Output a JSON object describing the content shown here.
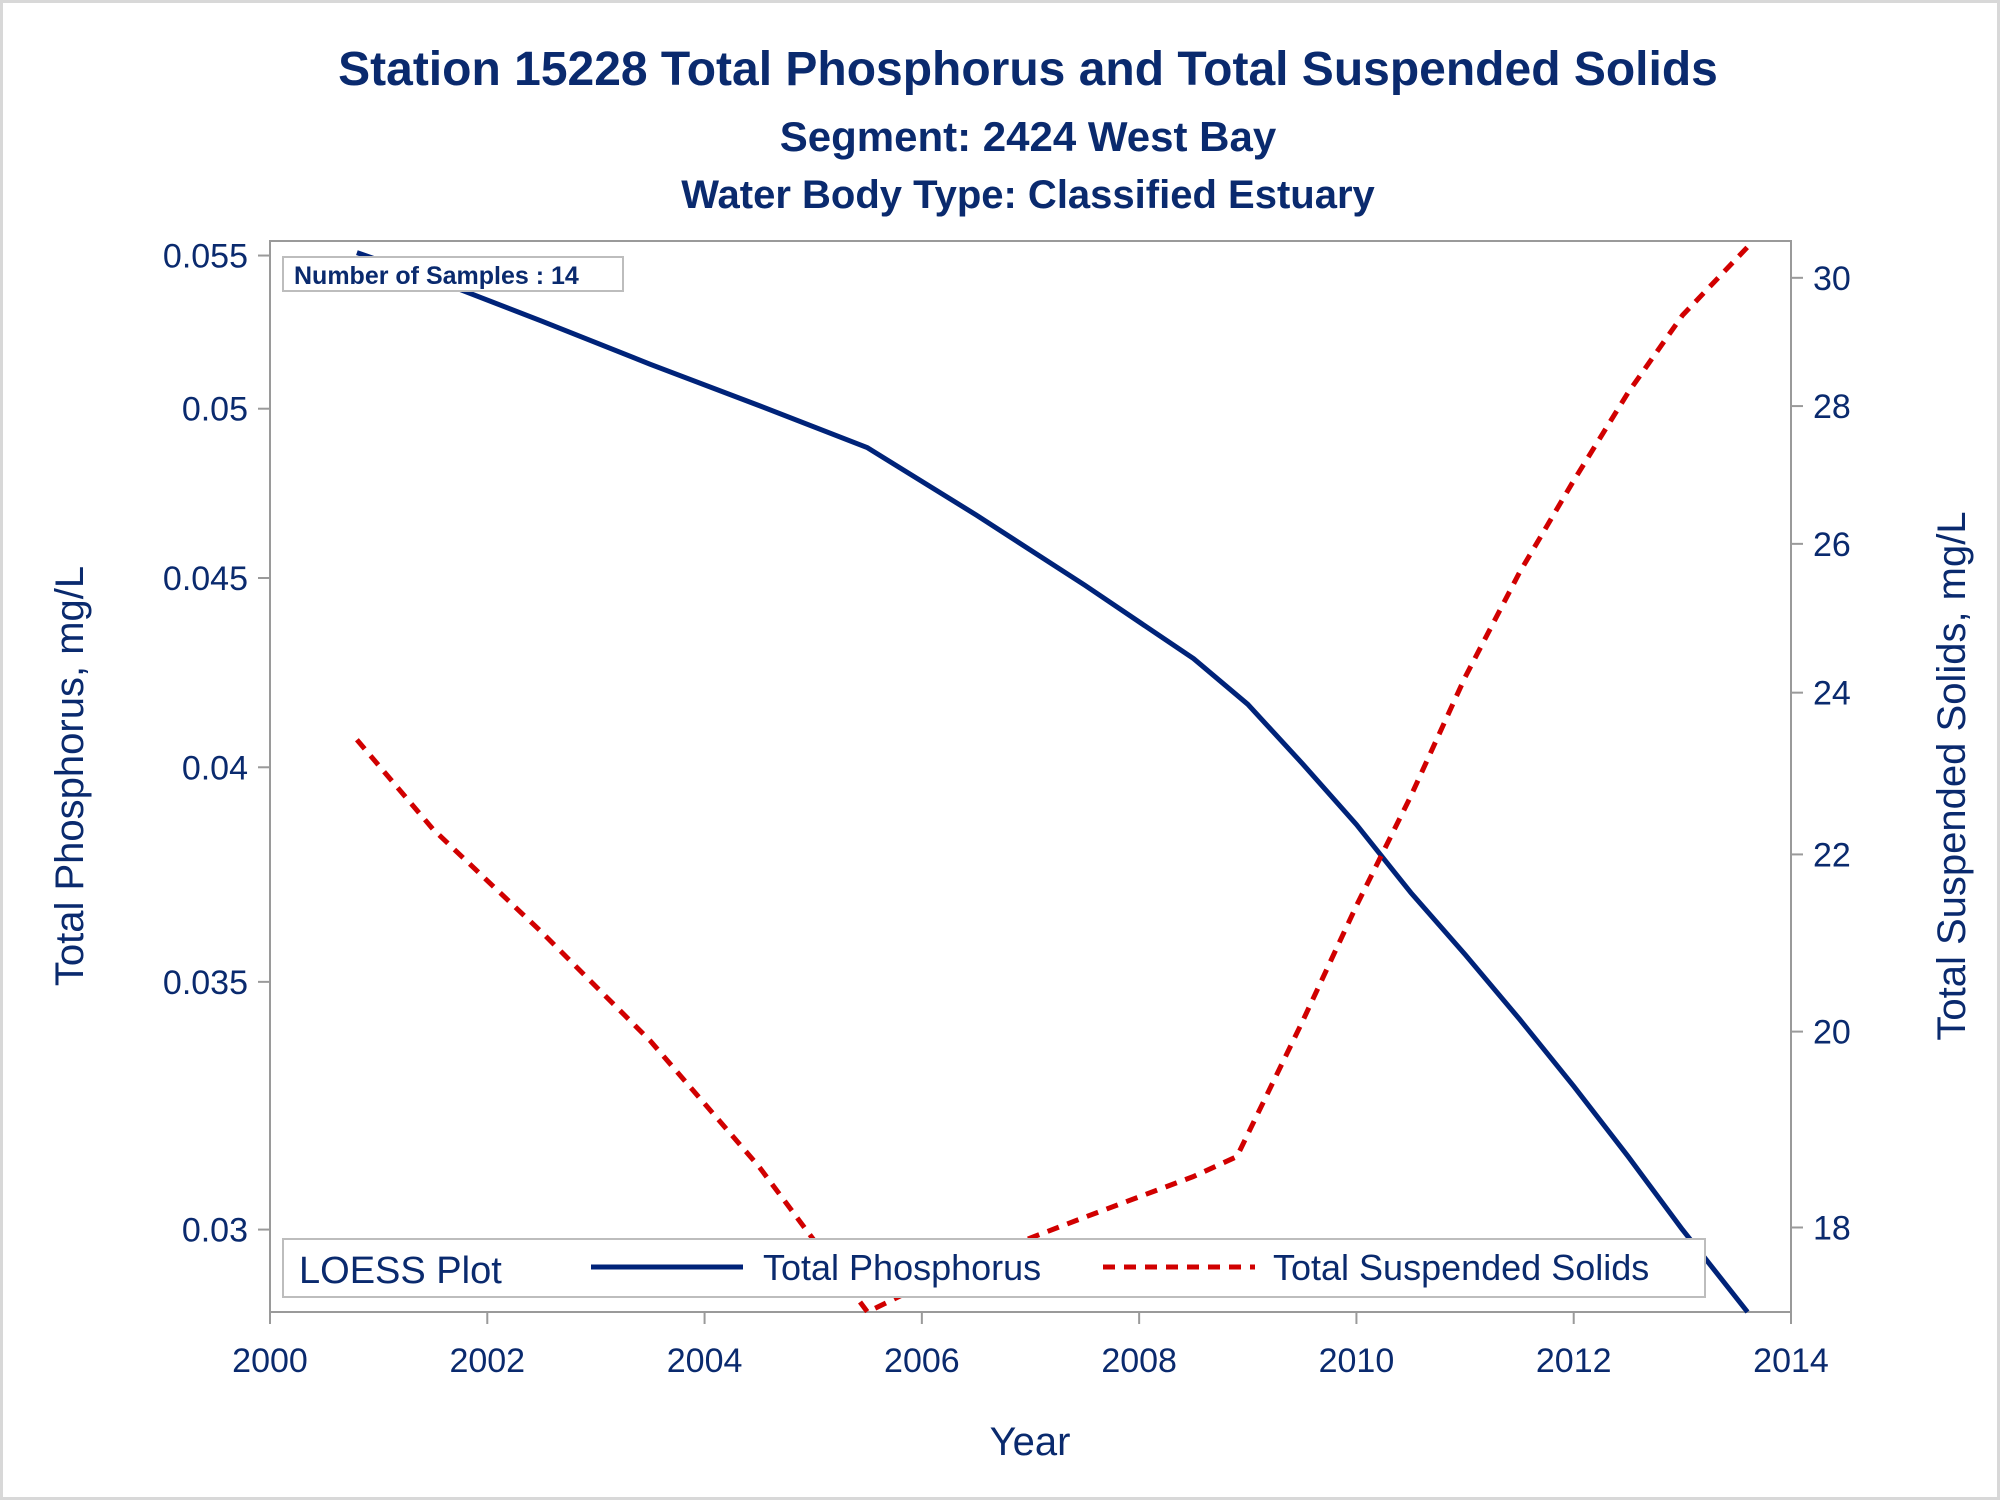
{
  "chart_data": {
    "type": "line",
    "title": "Station 15228  Total Phosphorus and Total Suspended Solids",
    "subtitle": "Segment: 2424  West Bay",
    "subtitle2": "Water Body Type: Classified Estuary",
    "xlabel": "Year",
    "ylabel": "Total Phosphorus, mg/L",
    "y2label": "Total Suspended Solids, mg/L",
    "xlim": [
      2000,
      2014
    ],
    "ylim": [
      0.0285,
      0.0555
    ],
    "y2lim": [
      17.2,
      30.6
    ],
    "y_scale": "log",
    "y2_scale": "log",
    "xticks": [
      2000,
      2002,
      2004,
      2006,
      2008,
      2010,
      2012,
      2014
    ],
    "xtick_labels": [
      "2000",
      "2002",
      "2004",
      "2006",
      "2008",
      "2010",
      "2012",
      "2014"
    ],
    "yticks": [
      0.03,
      0.035,
      0.04,
      0.045,
      0.05,
      0.055
    ],
    "ytick_labels": [
      "0.03",
      "0.035",
      "0.04",
      "0.045",
      "0.05",
      "0.055"
    ],
    "y2ticks": [
      18,
      20,
      22,
      24,
      26,
      28,
      30
    ],
    "y2tick_labels": [
      "18",
      "20",
      "22",
      "24",
      "26",
      "28",
      "30"
    ],
    "grid": false,
    "annotation": "Number of Samples : 14",
    "legend": {
      "title": "LOESS Plot",
      "position": "bottom-inside",
      "items": [
        "Total Phosphorus",
        "Total Suspended Solids"
      ]
    },
    "series": [
      {
        "name": "Total Phosphorus",
        "axis": "left",
        "color": "#002379",
        "dash": "solid",
        "x": [
          2000.8,
          2001.5,
          2002.5,
          2003.5,
          2004.5,
          2005.5,
          2006.5,
          2007.5,
          2008.5,
          2009.0,
          2009.5,
          2010.0,
          2010.5,
          2011.0,
          2011.5,
          2012.0,
          2012.5,
          2013.0,
          2013.6
        ],
        "values": [
          0.0551,
          0.0542,
          0.0528,
          0.0514,
          0.0501,
          0.0488,
          0.0468,
          0.0448,
          0.0428,
          0.0416,
          0.0401,
          0.0386,
          0.037,
          0.0356,
          0.0342,
          0.0328,
          0.0314,
          0.03,
          0.0285
        ]
      },
      {
        "name": "Total Suspended Solids",
        "axis": "right",
        "color": "#d10000",
        "dash": "dashed",
        "x": [
          2000.8,
          2001.5,
          2002.5,
          2003.5,
          2004.5,
          2005.5,
          2006.5,
          2007.5,
          2008.5,
          2008.9,
          2009.5,
          2010.0,
          2010.5,
          2011.0,
          2011.5,
          2012.0,
          2012.5,
          2013.0,
          2013.6
        ],
        "values": [
          23.4,
          22.3,
          21.1,
          19.9,
          18.6,
          17.2,
          17.7,
          18.1,
          18.5,
          18.7,
          20.1,
          21.4,
          22.7,
          24.2,
          25.6,
          26.9,
          28.2,
          29.4,
          30.5
        ]
      }
    ]
  }
}
